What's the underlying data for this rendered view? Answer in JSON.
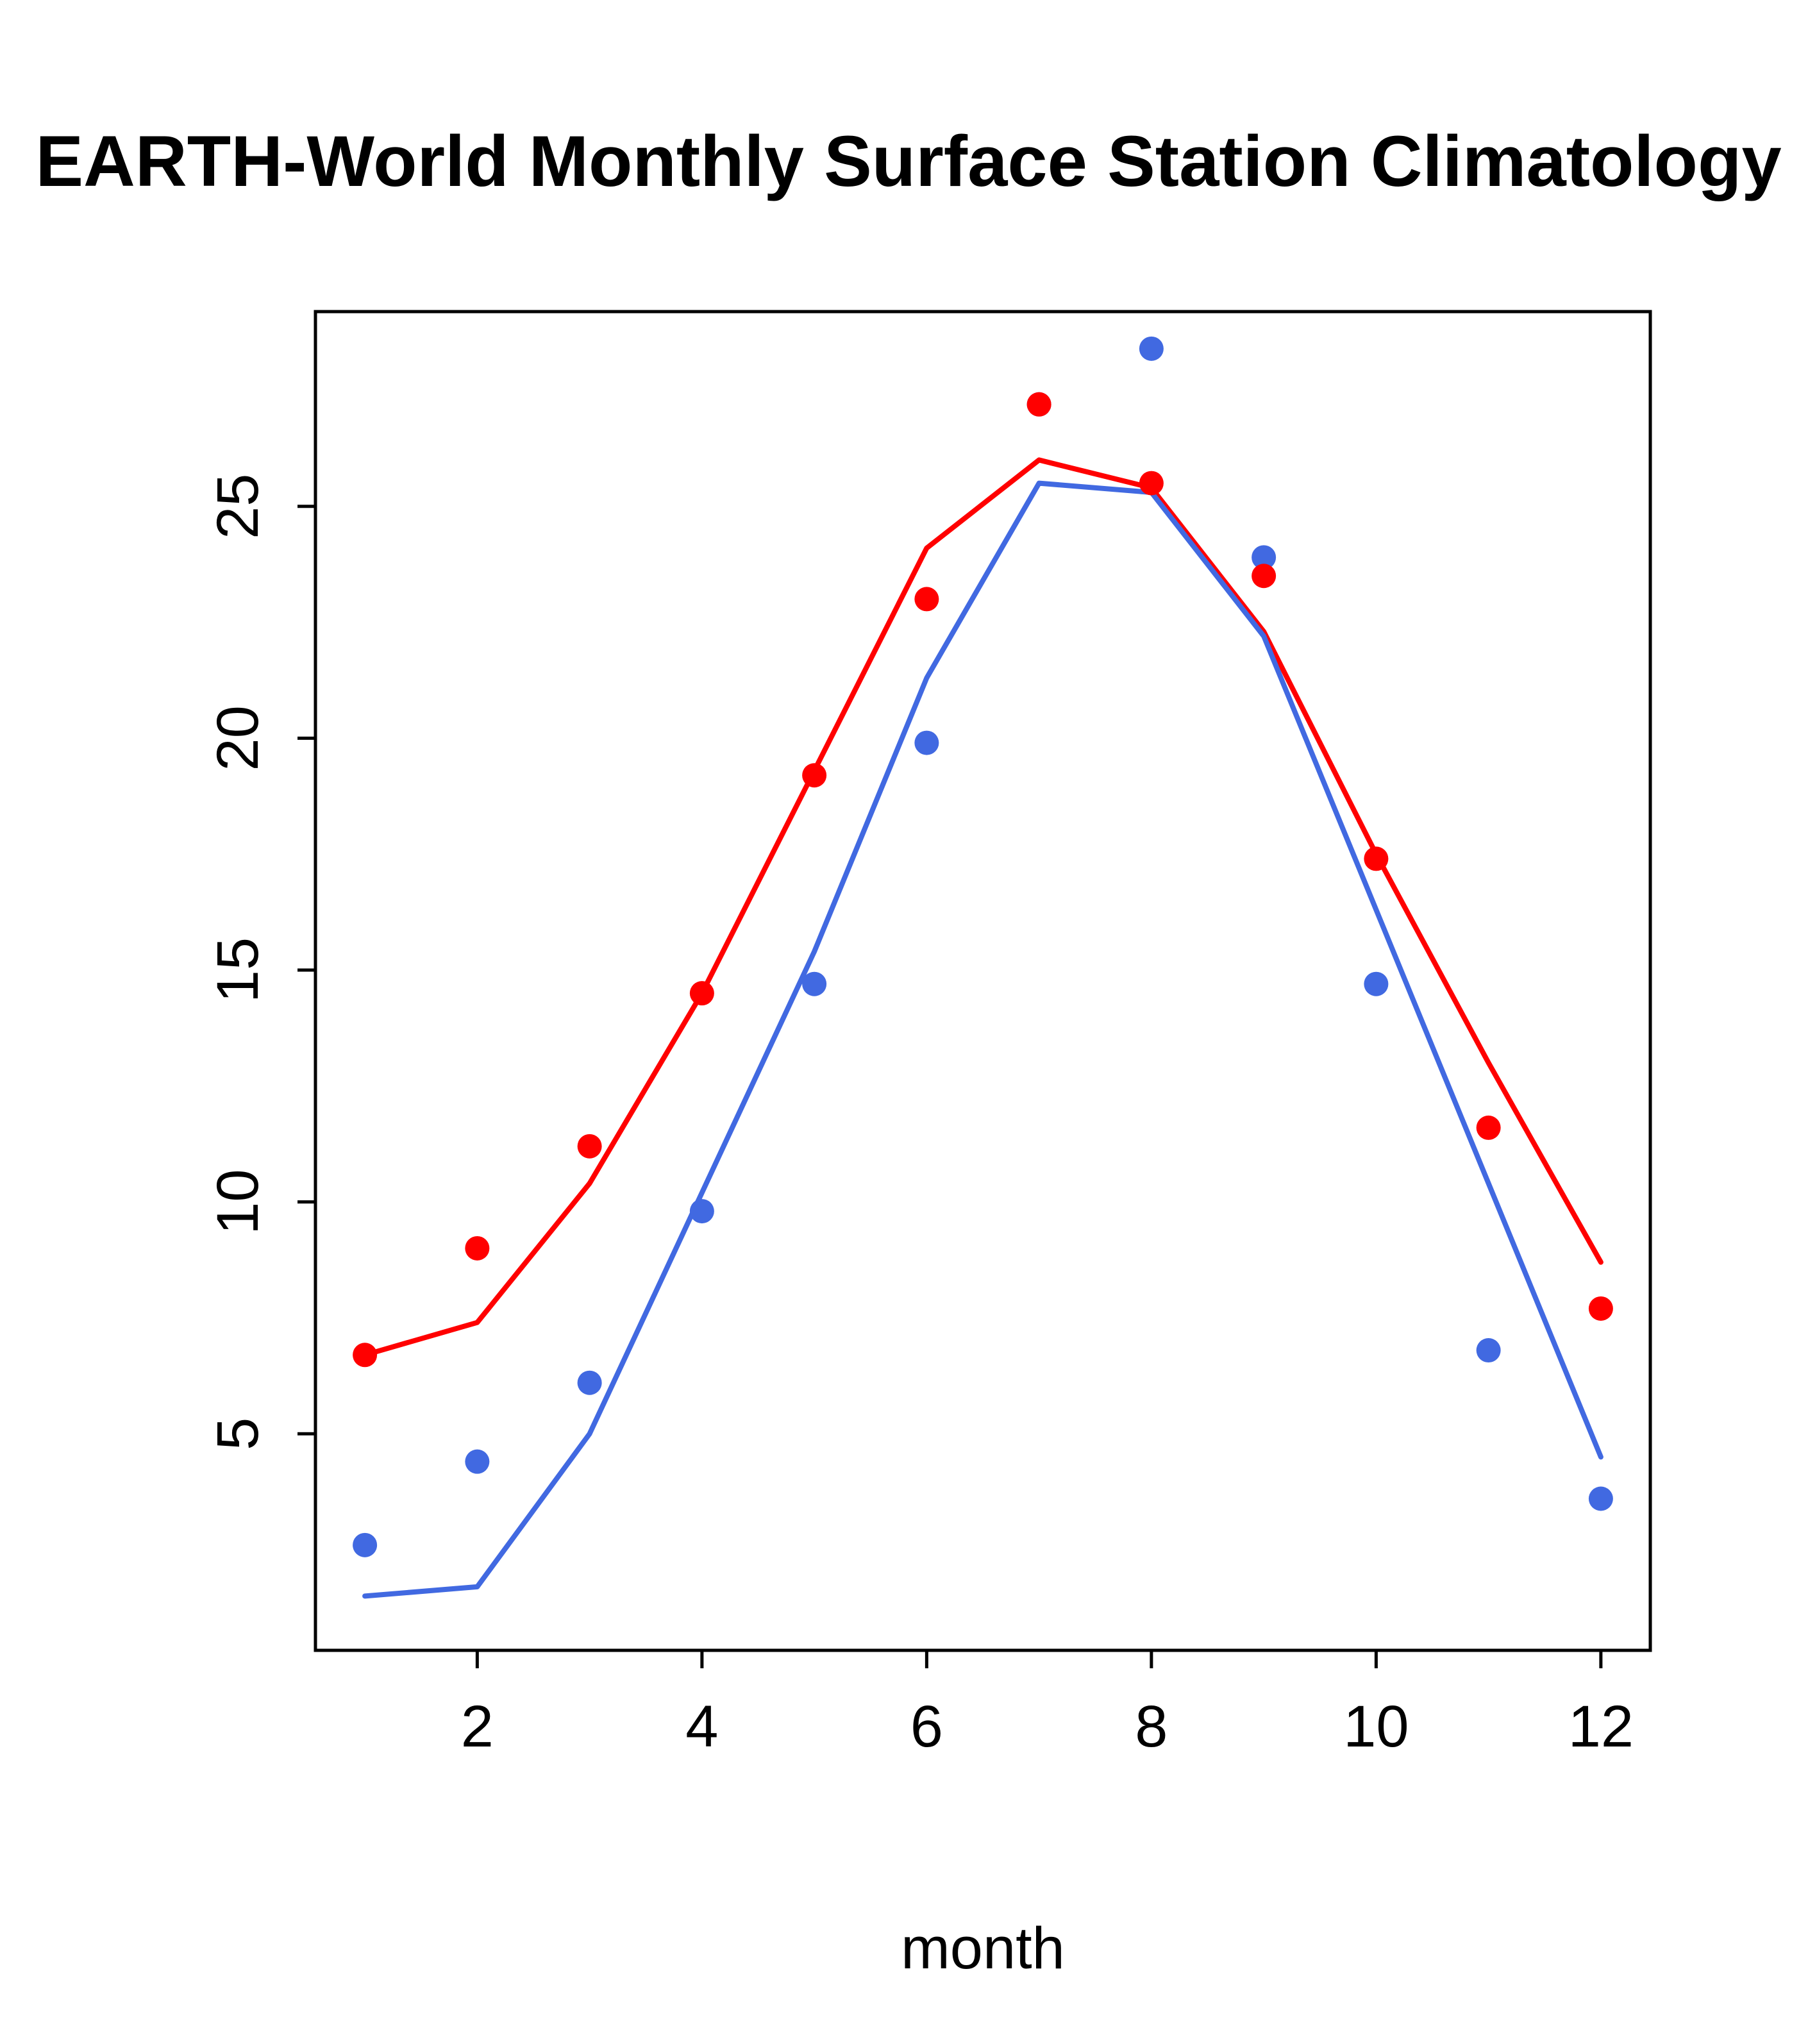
{
  "title": "EARTH-World Monthly Surface Station Climatology",
  "xlabel": "month",
  "colors": {
    "red": "#FF0000",
    "blue": "#4169E1",
    "axis": "#000000",
    "background": "#FFFFFF"
  },
  "chart_data": {
    "type": "line",
    "title": "EARTH-World Monthly Surface Station Climatology",
    "xlabel": "month",
    "ylabel": "",
    "x": [
      1,
      2,
      3,
      4,
      5,
      6,
      7,
      8,
      9,
      10,
      11,
      12
    ],
    "x_ticks": [
      2,
      4,
      6,
      8,
      10,
      12
    ],
    "y_ticks": [
      5,
      10,
      15,
      20,
      25
    ],
    "xlim": [
      0.56,
      12.44
    ],
    "ylim": [
      0.33,
      29.2
    ],
    "grid": false,
    "legend": "none",
    "series": [
      {
        "name": "red-line",
        "kind": "line",
        "color": "#FF0000",
        "values": [
          6.7,
          7.4,
          10.4,
          14.5,
          19.3,
          24.1,
          26.0,
          25.4,
          22.3,
          17.5,
          13.0,
          8.7
        ]
      },
      {
        "name": "blue-line",
        "kind": "line",
        "color": "#4169E1",
        "values": [
          1.5,
          1.7,
          5.0,
          10.2,
          15.4,
          21.3,
          25.5,
          25.3,
          22.2,
          16.3,
          10.4,
          4.5
        ]
      },
      {
        "name": "blue-points",
        "kind": "scatter",
        "color": "#4169E1",
        "values": [
          2.6,
          4.4,
          6.1,
          9.8,
          14.7,
          19.9,
          27.2,
          28.4,
          23.9,
          14.7,
          6.8,
          3.6
        ]
      },
      {
        "name": "red-points",
        "kind": "scatter",
        "color": "#FF0000",
        "values": [
          6.7,
          9.0,
          11.2,
          14.5,
          19.2,
          23.0,
          27.2,
          25.5,
          23.5,
          17.4,
          11.6,
          7.7
        ]
      }
    ]
  }
}
